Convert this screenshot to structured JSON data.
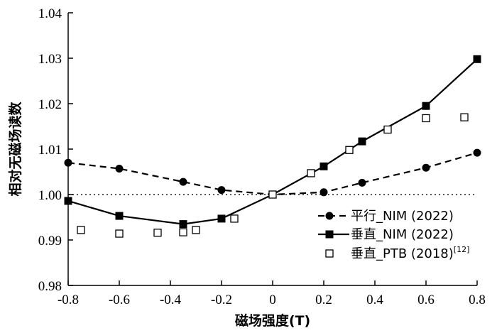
{
  "chart_data": {
    "type": "line",
    "xlabel": "磁场强度(T)",
    "ylabel": "相对无磁场读数",
    "xlim": [
      -0.8,
      0.8
    ],
    "ylim": [
      0.98,
      1.04
    ],
    "xticks": [
      -0.8,
      -0.6,
      -0.4,
      -0.2,
      0,
      0.2,
      0.4,
      0.6,
      0.8
    ],
    "xtick_labels": [
      "-0.8",
      "-0.6",
      "-0.4",
      "-0.2",
      "0",
      "0.2",
      "0.4",
      "0.6",
      "0.8"
    ],
    "yticks": [
      0.98,
      0.99,
      1.0,
      1.01,
      1.02,
      1.03,
      1.04
    ],
    "ytick_labels": [
      "0.98",
      "0.99",
      "1.00",
      "1.01",
      "1.02",
      "1.03",
      "1.04"
    ],
    "reference_line": {
      "y": 1.0,
      "style": "dotted",
      "color": "#555555"
    },
    "grid": false,
    "legend_position": "bottom-right",
    "series": [
      {
        "name": "平行_NIM (2022)",
        "marker": "circle-filled",
        "line": "dashed",
        "x": [
          -0.8,
          -0.6,
          -0.35,
          -0.2,
          0,
          0.2,
          0.35,
          0.6,
          0.8
        ],
        "y": [
          1.007,
          1.0057,
          1.0028,
          1.001,
          1.0,
          1.0005,
          1.0026,
          1.0059,
          1.0092
        ]
      },
      {
        "name": "垂直_NIM (2022)",
        "marker": "square-filled",
        "line": "solid",
        "x": [
          -0.8,
          -0.6,
          -0.35,
          -0.2,
          0,
          0.2,
          0.35,
          0.6,
          0.8
        ],
        "y": [
          0.9986,
          0.9953,
          0.9935,
          0.9947,
          1.0,
          1.0062,
          1.0117,
          1.0195,
          1.0298
        ]
      },
      {
        "name": "垂直_PTB (2018)",
        "name_superscript": "[12]",
        "marker": "square-open",
        "line": "none",
        "x": [
          -0.75,
          -0.6,
          -0.45,
          -0.35,
          -0.3,
          -0.15,
          0,
          0.15,
          0.3,
          0.45,
          0.6,
          0.75
        ],
        "y": [
          0.9922,
          0.9914,
          0.9916,
          0.9917,
          0.9922,
          0.9947,
          1.0,
          1.0047,
          1.0098,
          1.0143,
          1.0168,
          1.017
        ]
      }
    ]
  }
}
